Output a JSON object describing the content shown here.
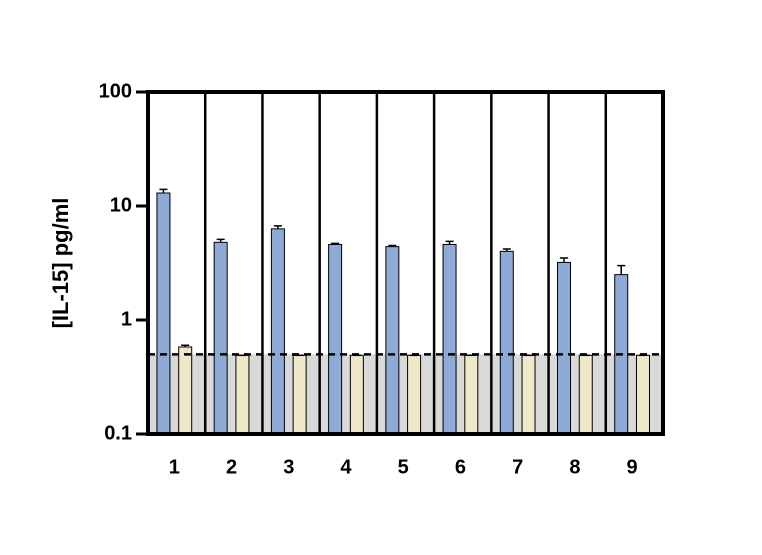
{
  "chart_data": {
    "type": "bar",
    "y_label": "[IL-15] pg/ml",
    "categories": [
      "1",
      "2",
      "3",
      "4",
      "5",
      "6",
      "7",
      "8",
      "9"
    ],
    "series": [
      {
        "color": "#8eaad6",
        "values": [
          13.0,
          4.8,
          6.3,
          4.6,
          4.4,
          4.6,
          4.0,
          3.2,
          2.5
        ],
        "errors": [
          1.0,
          0.3,
          0.4,
          0.1,
          0.1,
          0.3,
          0.2,
          0.3,
          0.5
        ]
      },
      {
        "color": "#efe8c8",
        "values": [
          0.58,
          0.49,
          0.49,
          0.49,
          0.49,
          0.49,
          0.49,
          0.49,
          0.49
        ],
        "errors": [
          0.02,
          0,
          0,
          0,
          0,
          0,
          0,
          0,
          0
        ]
      }
    ],
    "reference_line": 0.5,
    "shade_below_reference": true,
    "shade_color": "#d9d9d9",
    "ylim": [
      0.1,
      100
    ],
    "yticks": [
      0.1,
      1,
      10,
      100
    ],
    "log_scale": true,
    "category_separators": true
  }
}
